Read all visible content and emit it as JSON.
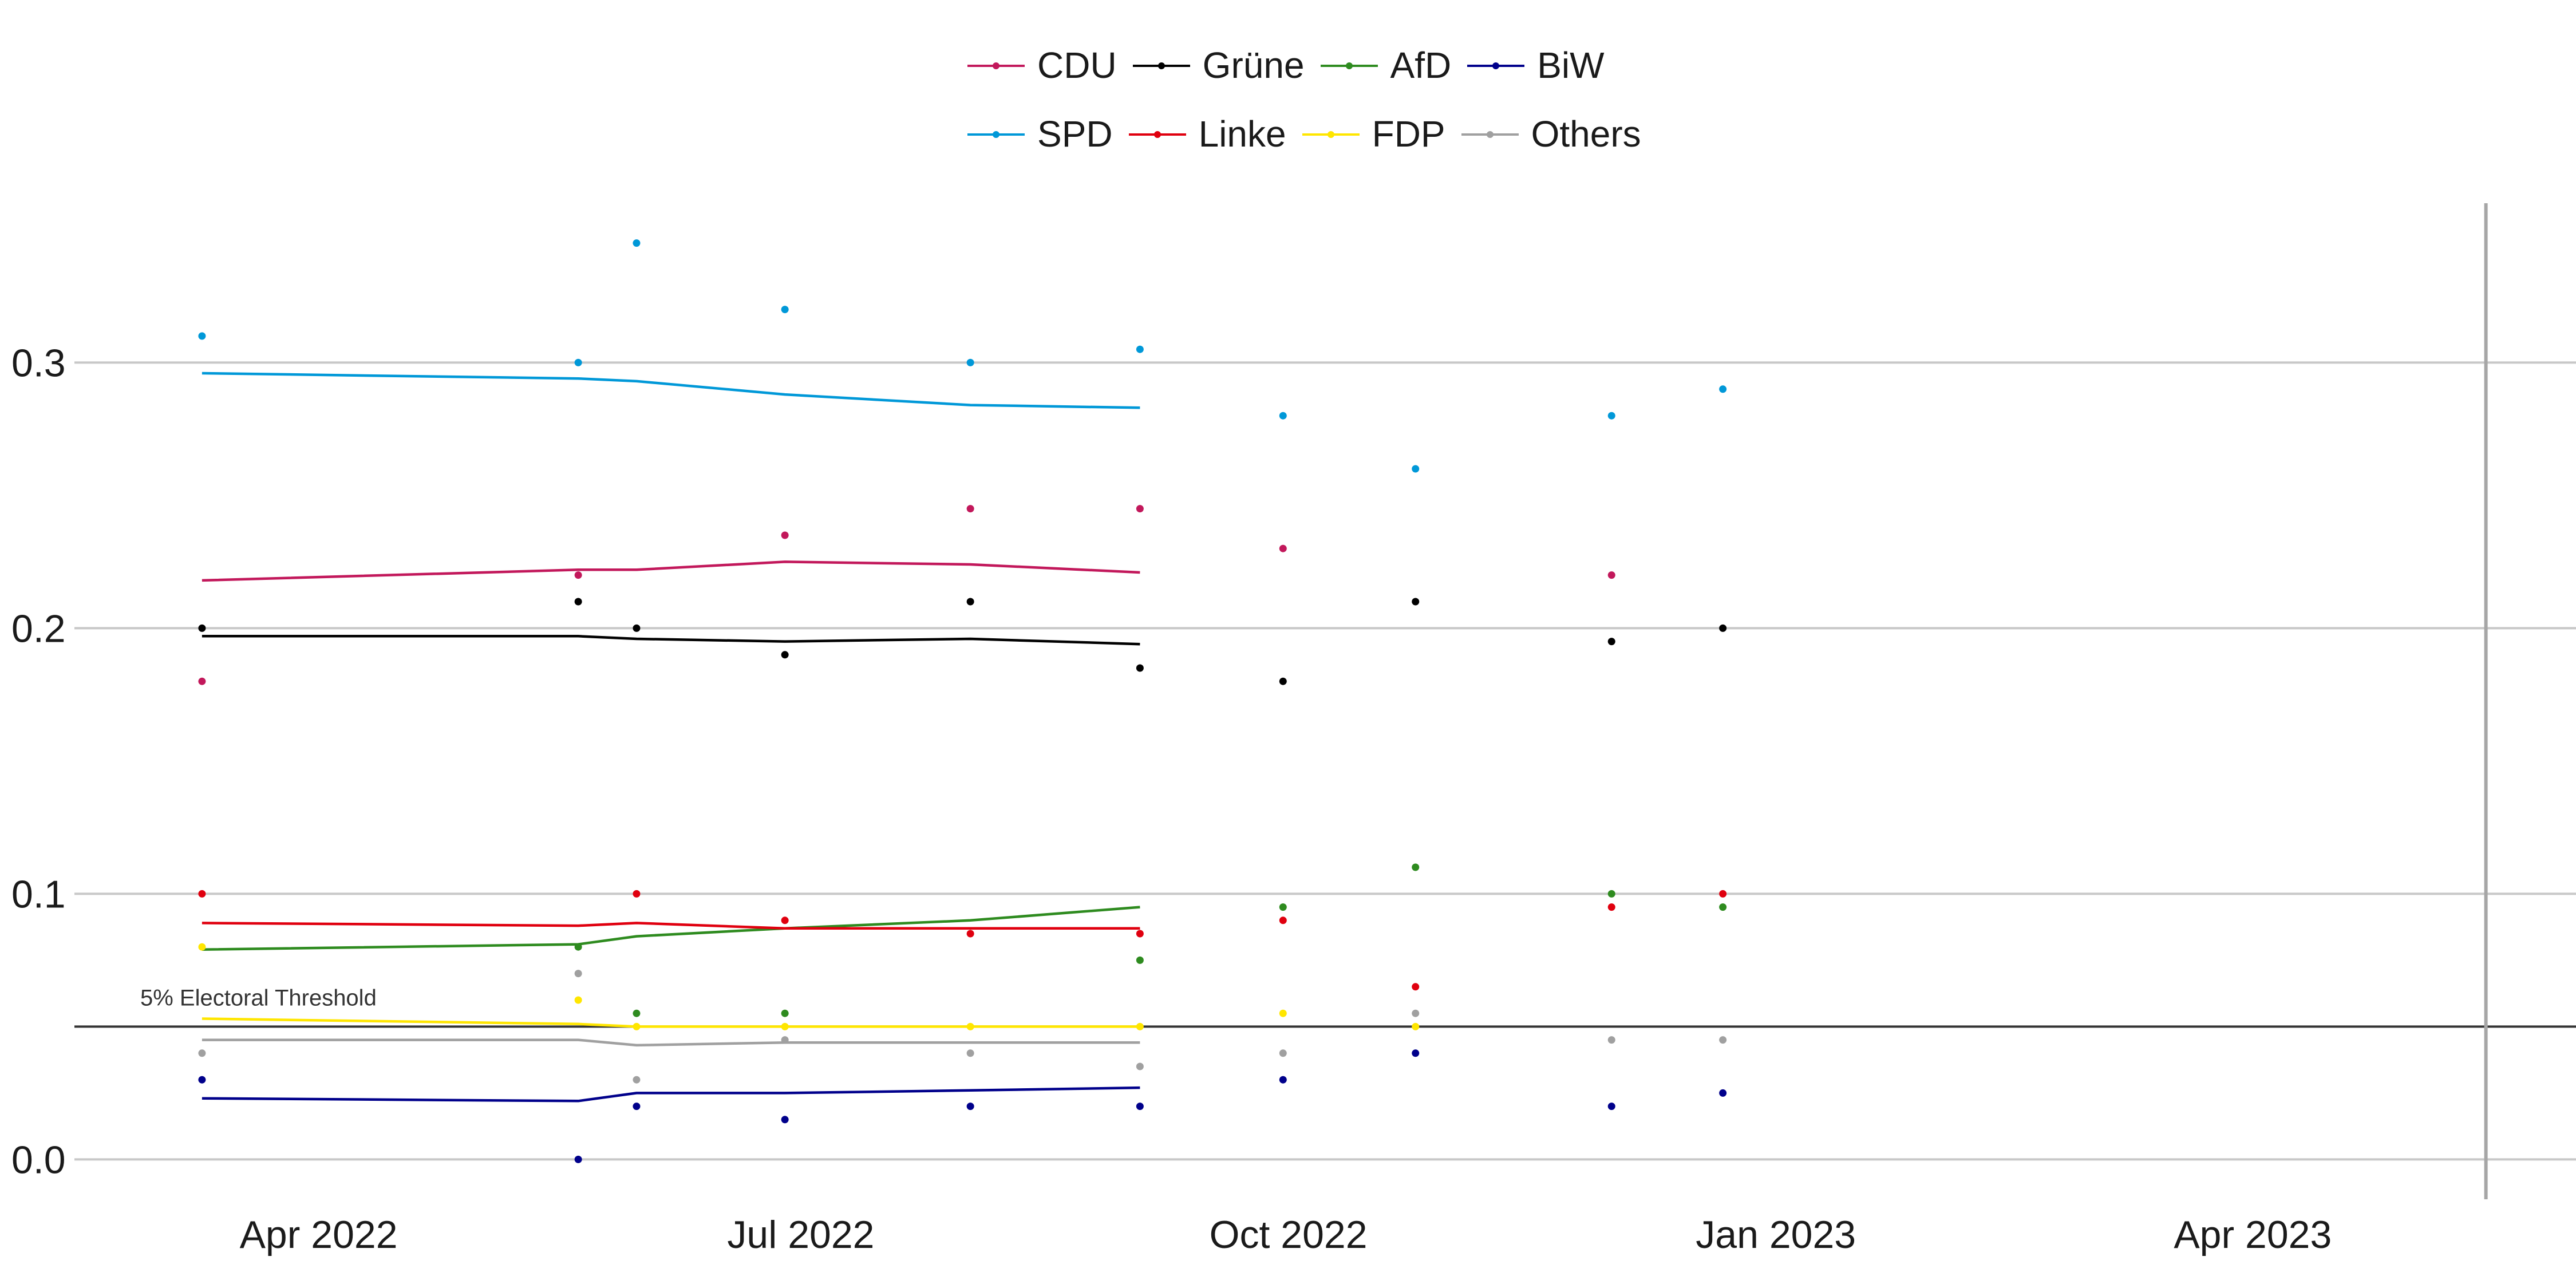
{
  "chart_data": {
    "type": "line",
    "x_axis": {
      "type": "date",
      "min": "2022-02-15",
      "max": "2023-06-01",
      "ticks": [
        {
          "date": "2022-04-01",
          "label": "Apr 2022"
        },
        {
          "date": "2022-07-01",
          "label": "Jul 2022"
        },
        {
          "date": "2022-10-01",
          "label": "Oct 2022"
        },
        {
          "date": "2023-01-01",
          "label": "Jan 2023"
        },
        {
          "date": "2023-04-01",
          "label": "Apr 2023"
        }
      ]
    },
    "y_axis": {
      "min": -0.015,
      "max": 0.36,
      "ticks": [
        0.0,
        0.1,
        0.2,
        0.3
      ]
    },
    "grid": "horizontal",
    "threshold": {
      "value": 0.05,
      "label": "5% Electoral Threshold"
    },
    "marker_line": {
      "date": "2023-05-15"
    },
    "legend_placement": "top-center",
    "series": [
      {
        "name": "CDU",
        "color": "#c2185b",
        "points": [
          [
            "2022-03-10",
            0.18
          ],
          [
            "2022-05-20",
            0.22
          ],
          [
            "2022-06-28",
            0.235
          ],
          [
            "2022-08-02",
            0.245
          ],
          [
            "2022-09-03",
            0.245
          ],
          [
            "2022-09-30",
            0.23
          ],
          [
            "2022-12-01",
            0.22
          ]
        ],
        "trend": [
          [
            "2022-03-10",
            0.218
          ],
          [
            "2022-05-20",
            0.222
          ],
          [
            "2022-05-31",
            0.222
          ],
          [
            "2022-06-28",
            0.225
          ],
          [
            "2022-08-02",
            0.224
          ],
          [
            "2022-09-03",
            0.221
          ]
        ]
      },
      {
        "name": "Grüne",
        "color": "#000000",
        "points": [
          [
            "2022-03-10",
            0.2
          ],
          [
            "2022-05-20",
            0.21
          ],
          [
            "2022-05-31",
            0.2
          ],
          [
            "2022-06-28",
            0.19
          ],
          [
            "2022-08-02",
            0.21
          ],
          [
            "2022-09-03",
            0.185
          ],
          [
            "2022-09-30",
            0.18
          ],
          [
            "2022-10-25",
            0.21
          ],
          [
            "2022-12-01",
            0.195
          ],
          [
            "2022-12-22",
            0.2
          ]
        ],
        "trend": [
          [
            "2022-03-10",
            0.197
          ],
          [
            "2022-05-20",
            0.197
          ],
          [
            "2022-05-31",
            0.196
          ],
          [
            "2022-06-28",
            0.195
          ],
          [
            "2022-08-02",
            0.196
          ],
          [
            "2022-09-03",
            0.194
          ]
        ]
      },
      {
        "name": "AfD",
        "color": "#2e8b1f",
        "points": [
          [
            "2022-05-20",
            0.08
          ],
          [
            "2022-05-31",
            0.055
          ],
          [
            "2022-06-28",
            0.055
          ],
          [
            "2022-09-03",
            0.075
          ],
          [
            "2022-09-30",
            0.095
          ],
          [
            "2022-10-25",
            0.11
          ],
          [
            "2022-12-01",
            0.1
          ],
          [
            "2022-12-22",
            0.095
          ]
        ],
        "trend": [
          [
            "2022-03-10",
            0.079
          ],
          [
            "2022-05-20",
            0.081
          ],
          [
            "2022-05-31",
            0.084
          ],
          [
            "2022-06-28",
            0.087
          ],
          [
            "2022-08-02",
            0.09
          ],
          [
            "2022-09-03",
            0.095
          ]
        ]
      },
      {
        "name": "BiW",
        "color": "#00008b",
        "points": [
          [
            "2022-03-10",
            0.03
          ],
          [
            "2022-05-20",
            0.0
          ],
          [
            "2022-05-31",
            0.02
          ],
          [
            "2022-06-28",
            0.015
          ],
          [
            "2022-08-02",
            0.02
          ],
          [
            "2022-09-03",
            0.02
          ],
          [
            "2022-09-30",
            0.03
          ],
          [
            "2022-10-25",
            0.04
          ],
          [
            "2022-12-01",
            0.02
          ],
          [
            "2022-12-22",
            0.025
          ]
        ],
        "trend": [
          [
            "2022-03-10",
            0.023
          ],
          [
            "2022-05-20",
            0.022
          ],
          [
            "2022-05-31",
            0.025
          ],
          [
            "2022-06-28",
            0.025
          ],
          [
            "2022-08-02",
            0.026
          ],
          [
            "2022-09-03",
            0.027
          ]
        ]
      },
      {
        "name": "SPD",
        "color": "#0098d8",
        "points": [
          [
            "2022-03-10",
            0.31
          ],
          [
            "2022-05-20",
            0.3
          ],
          [
            "2022-05-31",
            0.345
          ],
          [
            "2022-06-28",
            0.32
          ],
          [
            "2022-08-02",
            0.3
          ],
          [
            "2022-09-03",
            0.305
          ],
          [
            "2022-09-30",
            0.28
          ],
          [
            "2022-10-25",
            0.26
          ],
          [
            "2022-12-01",
            0.28
          ],
          [
            "2022-12-22",
            0.29
          ]
        ],
        "trend": [
          [
            "2022-03-10",
            0.296
          ],
          [
            "2022-05-20",
            0.294
          ],
          [
            "2022-05-31",
            0.293
          ],
          [
            "2022-06-28",
            0.288
          ],
          [
            "2022-08-02",
            0.284
          ],
          [
            "2022-09-03",
            0.283
          ]
        ]
      },
      {
        "name": "Linke",
        "color": "#e0000f",
        "points": [
          [
            "2022-03-10",
            0.1
          ],
          [
            "2022-05-31",
            0.1
          ],
          [
            "2022-06-28",
            0.09
          ],
          [
            "2022-08-02",
            0.085
          ],
          [
            "2022-09-03",
            0.085
          ],
          [
            "2022-09-30",
            0.09
          ],
          [
            "2022-10-25",
            0.065
          ],
          [
            "2022-12-01",
            0.095
          ],
          [
            "2022-12-22",
            0.1
          ]
        ],
        "trend": [
          [
            "2022-03-10",
            0.089
          ],
          [
            "2022-05-20",
            0.088
          ],
          [
            "2022-05-31",
            0.089
          ],
          [
            "2022-06-28",
            0.087
          ],
          [
            "2022-08-02",
            0.087
          ],
          [
            "2022-09-03",
            0.087
          ]
        ]
      },
      {
        "name": "FDP",
        "color": "#ffe600",
        "points": [
          [
            "2022-03-10",
            0.08
          ],
          [
            "2022-05-20",
            0.06
          ],
          [
            "2022-05-31",
            0.05
          ],
          [
            "2022-06-28",
            0.05
          ],
          [
            "2022-08-02",
            0.05
          ],
          [
            "2022-09-03",
            0.05
          ],
          [
            "2022-09-30",
            0.055
          ],
          [
            "2022-10-25",
            0.05
          ]
        ],
        "trend": [
          [
            "2022-03-10",
            0.053
          ],
          [
            "2022-05-20",
            0.051
          ],
          [
            "2022-05-31",
            0.05
          ],
          [
            "2022-06-28",
            0.05
          ],
          [
            "2022-08-02",
            0.05
          ],
          [
            "2022-09-03",
            0.05
          ]
        ]
      },
      {
        "name": "Others",
        "color": "#a0a0a0",
        "points": [
          [
            "2022-03-10",
            0.04
          ],
          [
            "2022-05-20",
            0.07
          ],
          [
            "2022-05-31",
            0.03
          ],
          [
            "2022-06-28",
            0.045
          ],
          [
            "2022-08-02",
            0.04
          ],
          [
            "2022-09-03",
            0.035
          ],
          [
            "2022-09-30",
            0.04
          ],
          [
            "2022-10-25",
            0.055
          ],
          [
            "2022-12-01",
            0.045
          ],
          [
            "2022-12-22",
            0.045
          ]
        ],
        "trend": [
          [
            "2022-03-10",
            0.045
          ],
          [
            "2022-05-20",
            0.045
          ],
          [
            "2022-05-31",
            0.043
          ],
          [
            "2022-06-28",
            0.044
          ],
          [
            "2022-08-02",
            0.044
          ],
          [
            "2022-09-03",
            0.044
          ]
        ]
      }
    ]
  },
  "legend": {
    "rows": [
      [
        "CDU",
        "Grüne",
        "AfD",
        "BiW"
      ],
      [
        "SPD",
        "Linke",
        "FDP",
        "Others"
      ]
    ]
  }
}
